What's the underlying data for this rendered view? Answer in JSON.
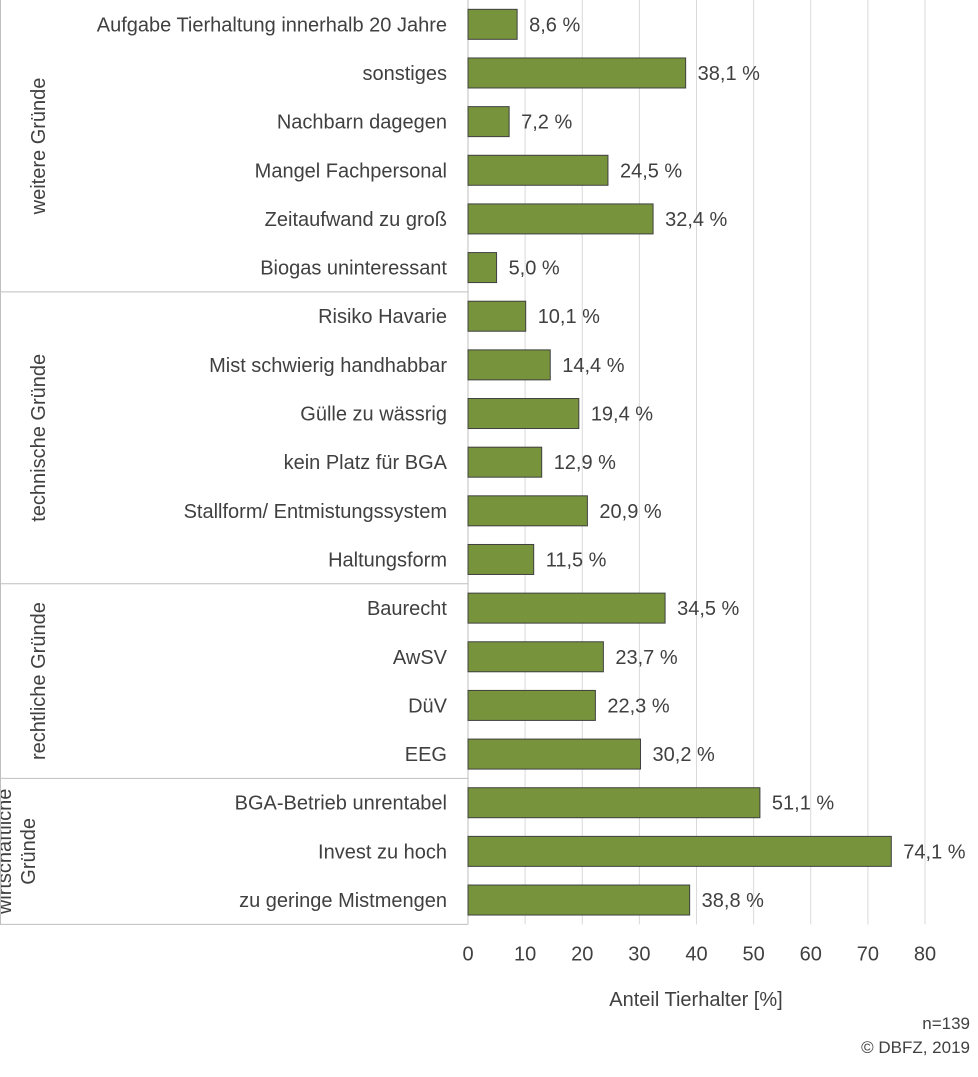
{
  "chart_data": {
    "type": "bar",
    "orientation": "horizontal",
    "xlabel": "Anteil Tierhalter [%]",
    "xlim": [
      0,
      80
    ],
    "xticks": [
      0,
      10,
      20,
      30,
      40,
      50,
      60,
      70,
      80
    ],
    "grid": true,
    "bar_color": "#77933C",
    "bar_border_color": "#404040",
    "categories": [
      "Aufgabe Tierhaltung innerhalb 20 Jahre",
      "sonstiges",
      "Nachbarn dagegen",
      "Mangel Fachpersonal",
      "Zeitaufwand zu groß",
      "Biogas uninteressant",
      "Risiko Havarie",
      "Mist schwierig handhabbar",
      "Gülle zu wässrig",
      "kein Platz für BGA",
      "Stallform/ Entmistungssystem",
      "Haltungsform",
      "Baurecht",
      "AwSV",
      "DüV",
      "EEG",
      "BGA-Betrieb unrentabel",
      "Invest zu hoch",
      "zu geringe Mistmengen"
    ],
    "values": [
      8.6,
      38.1,
      7.2,
      24.5,
      32.4,
      5.0,
      10.1,
      14.4,
      19.4,
      12.9,
      20.9,
      11.5,
      34.5,
      23.7,
      22.3,
      30.2,
      51.1,
      74.1,
      38.8
    ],
    "value_labels": [
      "8,6 %",
      "38,1 %",
      "7,2 %",
      "24,5 %",
      "32,4 %",
      "5,0 %",
      "10,1 %",
      "14,4 %",
      "19,4 %",
      "12,9 %",
      "20,9 %",
      "11,5 %",
      "34,5 %",
      "23,7 %",
      "22,3 %",
      "30,2 %",
      "51,1 %",
      "74,1 %",
      "38,8 %"
    ],
    "groups": [
      {
        "label": [
          "weitere Gründe"
        ],
        "start": 0,
        "end": 5
      },
      {
        "label": [
          "technische Gründe"
        ],
        "start": 6,
        "end": 11
      },
      {
        "label": [
          "rechtliche Gründe"
        ],
        "start": 12,
        "end": 15
      },
      {
        "label": [
          "wirtschaftliche",
          "Gründe"
        ],
        "start": 16,
        "end": 18
      }
    ]
  },
  "footnote": {
    "n": "n=139",
    "copyright": "© DBFZ, 2019"
  }
}
